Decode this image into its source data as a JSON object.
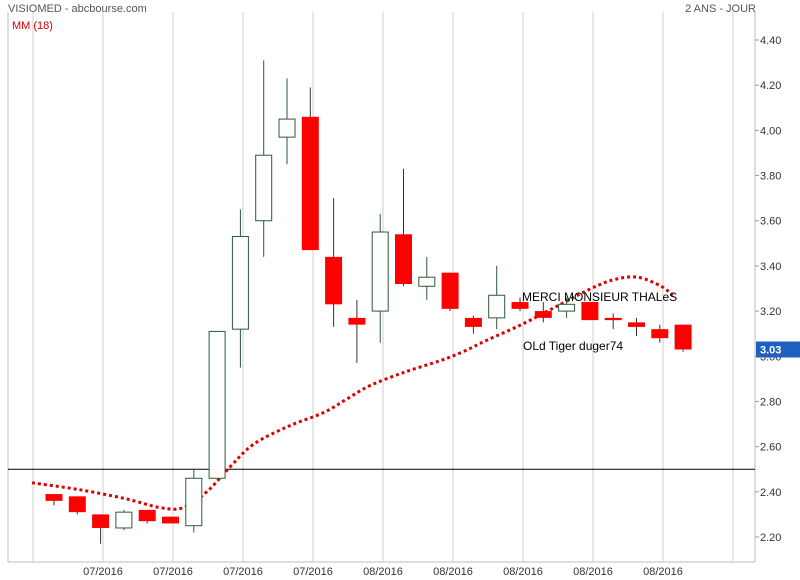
{
  "header": {
    "title": "VISIOMED - abcbourse.com",
    "period": "2 ANS - JOUR",
    "ma_label": "MM (18)"
  },
  "colors": {
    "up_candle_stroke": "#2a5a3a",
    "down_candle_fill": "#ff0000",
    "ma_line": "#dd0000",
    "last_price_bg": "#1f5fbf",
    "gridline": "#cfcfcf"
  },
  "chart_data": {
    "type": "candlestick",
    "title": "VISIOMED",
    "ylim": [
      2.13,
      4.46
    ],
    "y_ticks": [
      "4.40",
      "4.20",
      "4.00",
      "3.80",
      "3.60",
      "3.40",
      "3.20",
      "3.00",
      "2.80",
      "2.60",
      "2.40",
      "2.20"
    ],
    "x_ticks": [
      "07/2016",
      "07/2016",
      "07/2016",
      "07/2016",
      "08/2016",
      "08/2016",
      "08/2016",
      "08/2016",
      "08/2016"
    ],
    "reference_line": 2.5,
    "last_price": "3.03",
    "candles": [
      {
        "o": 2.39,
        "h": 2.39,
        "l": 2.34,
        "c": 2.36
      },
      {
        "o": 2.38,
        "h": 2.38,
        "l": 2.3,
        "c": 2.31
      },
      {
        "o": 2.3,
        "h": 2.3,
        "l": 2.17,
        "c": 2.24
      },
      {
        "o": 2.24,
        "h": 2.32,
        "l": 2.23,
        "c": 2.31
      },
      {
        "o": 2.32,
        "h": 2.32,
        "l": 2.26,
        "c": 2.27
      },
      {
        "o": 2.29,
        "h": 2.29,
        "l": 2.26,
        "c": 2.26
      },
      {
        "o": 2.25,
        "h": 2.5,
        "l": 2.22,
        "c": 2.46
      },
      {
        "o": 2.46,
        "h": 3.11,
        "l": 2.47,
        "c": 3.11
      },
      {
        "o": 3.12,
        "h": 3.65,
        "l": 2.95,
        "c": 3.53
      },
      {
        "o": 3.6,
        "h": 4.31,
        "l": 3.44,
        "c": 3.89
      },
      {
        "o": 3.97,
        "h": 4.23,
        "l": 3.85,
        "c": 4.05
      },
      {
        "o": 4.06,
        "h": 4.19,
        "l": 3.47,
        "c": 3.47
      },
      {
        "o": 3.44,
        "h": 3.7,
        "l": 3.13,
        "c": 3.23
      },
      {
        "o": 3.17,
        "h": 3.25,
        "l": 2.97,
        "c": 3.14
      },
      {
        "o": 3.2,
        "h": 3.63,
        "l": 3.06,
        "c": 3.55
      },
      {
        "o": 3.54,
        "h": 3.83,
        "l": 3.31,
        "c": 3.32
      },
      {
        "o": 3.31,
        "h": 3.44,
        "l": 3.25,
        "c": 3.35
      },
      {
        "o": 3.37,
        "h": 3.37,
        "l": 3.2,
        "c": 3.21
      },
      {
        "o": 3.17,
        "h": 3.18,
        "l": 3.1,
        "c": 3.13
      },
      {
        "o": 3.17,
        "h": 3.4,
        "l": 3.12,
        "c": 3.27
      },
      {
        "o": 3.24,
        "h": 3.26,
        "l": 3.2,
        "c": 3.21
      },
      {
        "o": 3.2,
        "h": 3.24,
        "l": 3.15,
        "c": 3.17
      },
      {
        "o": 3.2,
        "h": 3.26,
        "l": 3.17,
        "c": 3.23
      },
      {
        "o": 3.24,
        "h": 3.24,
        "l": 3.16,
        "c": 3.16
      },
      {
        "o": 3.17,
        "h": 3.19,
        "l": 3.12,
        "c": 3.16
      },
      {
        "o": 3.15,
        "h": 3.17,
        "l": 3.09,
        "c": 3.13
      },
      {
        "o": 3.12,
        "h": 3.14,
        "l": 3.06,
        "c": 3.08
      },
      {
        "o": 3.14,
        "h": 3.14,
        "l": 3.02,
        "c": 3.03
      }
    ],
    "ma_series": {
      "name": "MM (18)",
      "points": [
        [
          0,
          2.44
        ],
        [
          2,
          2.41
        ],
        [
          4,
          2.37
        ],
        [
          5.5,
          2.33
        ],
        [
          6.5,
          2.33
        ],
        [
          7.5,
          2.4
        ],
        [
          8.5,
          2.51
        ],
        [
          9.5,
          2.61
        ],
        [
          11,
          2.69
        ],
        [
          12.5,
          2.75
        ],
        [
          13.5,
          2.81
        ],
        [
          14.5,
          2.87
        ],
        [
          16,
          2.93
        ],
        [
          17.5,
          2.98
        ],
        [
          18.5,
          3.02
        ],
        [
          19.5,
          3.07
        ],
        [
          21,
          3.14
        ],
        [
          22.5,
          3.22
        ],
        [
          24,
          3.3
        ],
        [
          25,
          3.34
        ],
        [
          26,
          3.35
        ],
        [
          27,
          3.31
        ],
        [
          27.5,
          3.27
        ]
      ]
    },
    "annotations": [
      "MERCI MONSIEUR THALeS",
      "OLd Tiger duger74"
    ]
  }
}
